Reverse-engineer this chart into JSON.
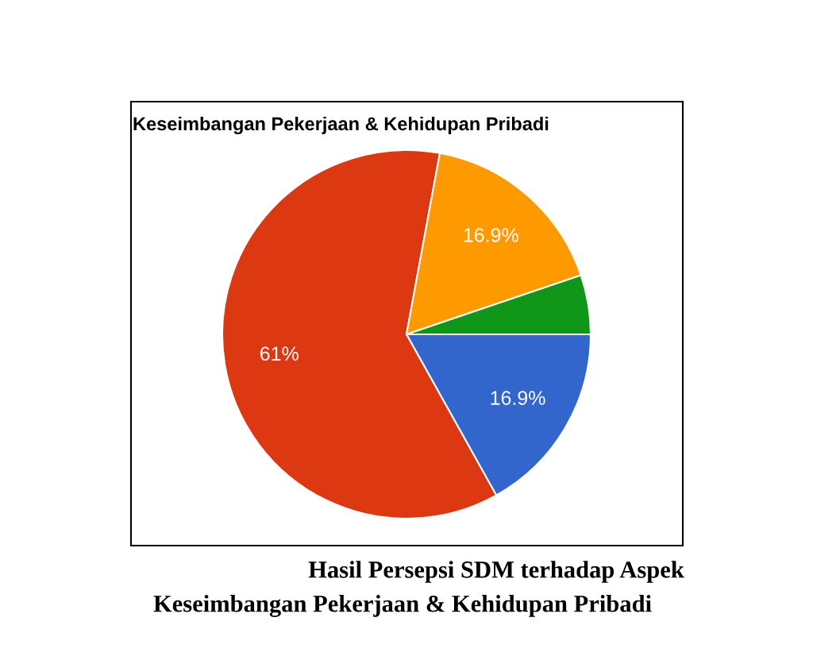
{
  "chart_data": {
    "type": "pie",
    "title": "Keseimbangan Pekerjaan & Kehidupan Pribadi",
    "categories": [
      null,
      null,
      null,
      null
    ],
    "values": [
      16.9,
      61,
      16.9,
      5.2
    ],
    "value_labels": [
      "16.9%",
      "61%",
      "16.9%",
      null
    ],
    "colors": [
      "#3366cc",
      "#dc3912",
      "#ff9900",
      "#109618"
    ],
    "legend": false,
    "annotations": [
      "Hasil Persepsi SDM terhadap Aspek",
      "Keseimbangan Pekerjaan & Kehidupan Pribadi"
    ]
  }
}
